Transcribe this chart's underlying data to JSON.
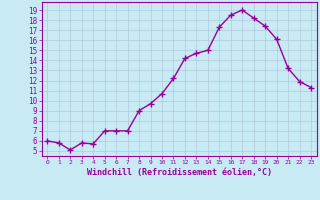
{
  "x": [
    0,
    1,
    2,
    3,
    4,
    5,
    6,
    7,
    8,
    9,
    10,
    11,
    12,
    13,
    14,
    15,
    16,
    17,
    18,
    19,
    20,
    21,
    22,
    23
  ],
  "y": [
    6.0,
    5.8,
    5.1,
    5.8,
    5.7,
    7.0,
    7.0,
    7.0,
    9.0,
    9.7,
    10.7,
    12.2,
    14.2,
    14.7,
    15.0,
    17.3,
    18.5,
    19.0,
    18.2,
    17.4,
    16.1,
    13.2,
    11.9,
    11.3
  ],
  "color": "#990099",
  "bg_color": "#c8eaf4",
  "grid_color": "#b0c8d8",
  "xlabel": "Windchill (Refroidissement éolien,°C)",
  "xlabel_color": "#990099",
  "yticks": [
    5,
    6,
    7,
    8,
    9,
    10,
    11,
    12,
    13,
    14,
    15,
    16,
    17,
    18,
    19
  ],
  "xticks": [
    0,
    1,
    2,
    3,
    4,
    5,
    6,
    7,
    8,
    9,
    10,
    11,
    12,
    13,
    14,
    15,
    16,
    17,
    18,
    19,
    20,
    21,
    22,
    23
  ],
  "ylim": [
    4.5,
    19.8
  ],
  "xlim": [
    -0.5,
    23.5
  ],
  "marker": "+",
  "marker_size": 4,
  "linewidth": 1.0
}
